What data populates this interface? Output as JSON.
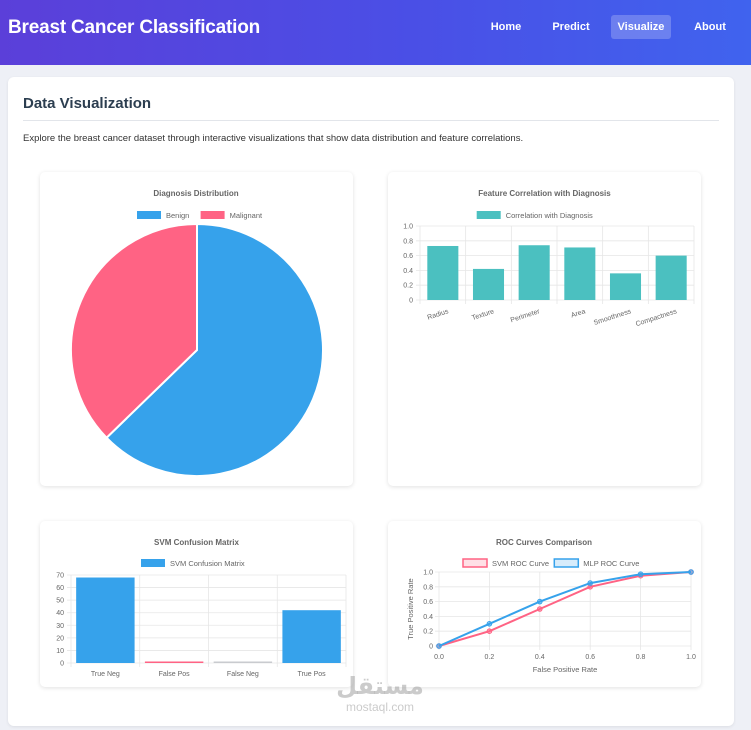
{
  "app": {
    "title": "Breast Cancer Classification"
  },
  "nav": {
    "home": "Home",
    "predict": "Predict",
    "visualize": "Visualize",
    "about": "About"
  },
  "page": {
    "title": "Data Visualization",
    "intro": "Explore the breast cancer dataset through interactive visualizations that show data distribution and feature correlations."
  },
  "colors": {
    "blue": "#36a2eb",
    "pink": "#ff6384",
    "teal": "#4bc0c0",
    "grid": "#e6e6e6",
    "axis_text": "#666666"
  },
  "chart_data": [
    {
      "id": "diagnosis",
      "type": "pie",
      "title": "Diagnosis Distribution",
      "categories": [
        "Benign",
        "Malignant"
      ],
      "values": [
        357,
        212
      ],
      "colors": [
        "#36a2eb",
        "#ff6384"
      ],
      "legend": "top"
    },
    {
      "id": "correlation",
      "type": "bar",
      "title": "Feature Correlation with Diagnosis",
      "series": [
        {
          "name": "Correlation with Diagnosis",
          "values": [
            0.73,
            0.42,
            0.74,
            0.71,
            0.36,
            0.6
          ]
        }
      ],
      "categories": [
        "Radius",
        "Texture",
        "Perimeter",
        "Area",
        "Smoothness",
        "Compactness"
      ],
      "ylim": [
        0,
        1.0
      ],
      "yticks": [
        "1.0",
        "0.8",
        "0.6",
        "0.4",
        "0.2",
        "0"
      ],
      "color": "#4bc0c0",
      "legend": "top"
    },
    {
      "id": "confusion",
      "type": "bar",
      "title": "SVM Confusion Matrix",
      "series": [
        {
          "name": "SVM Confusion Matrix",
          "values": [
            68,
            1,
            0,
            42
          ]
        }
      ],
      "categories": [
        "True Neg",
        "False Pos",
        "False Neg",
        "True Pos"
      ],
      "colors": [
        "#36a2eb",
        "#ff6384",
        "#c9cbcf",
        "#36a2eb"
      ],
      "ylim": [
        0,
        70
      ],
      "yticks": [
        "70",
        "60",
        "50",
        "40",
        "30",
        "20",
        "10",
        "0"
      ],
      "legend": "top"
    },
    {
      "id": "roc",
      "type": "line",
      "title": "ROC Curves Comparison",
      "x": [
        0.0,
        0.2,
        0.4,
        0.6,
        0.8,
        1.0
      ],
      "xticks": [
        "0.0",
        "0.2",
        "0.4",
        "0.6",
        "0.8",
        "1.0"
      ],
      "yticks": [
        "1.0",
        "0.8",
        "0.6",
        "0.4",
        "0.2",
        "0"
      ],
      "series": [
        {
          "name": "SVM ROC Curve",
          "values": [
            0,
            0.2,
            0.5,
            0.8,
            0.95,
            1.0
          ],
          "color": "#ff6384"
        },
        {
          "name": "MLP ROC Curve",
          "values": [
            0,
            0.3,
            0.6,
            0.85,
            0.97,
            1.0
          ],
          "color": "#36a2eb"
        }
      ],
      "xlabel": "False Positive Rate",
      "ylabel": "True Positive Rate",
      "xlim": [
        0,
        1
      ],
      "ylim": [
        0,
        1
      ],
      "legend": "top"
    }
  ],
  "watermark": {
    "arabic": "مستقل",
    "latin": "mostaql.com"
  }
}
